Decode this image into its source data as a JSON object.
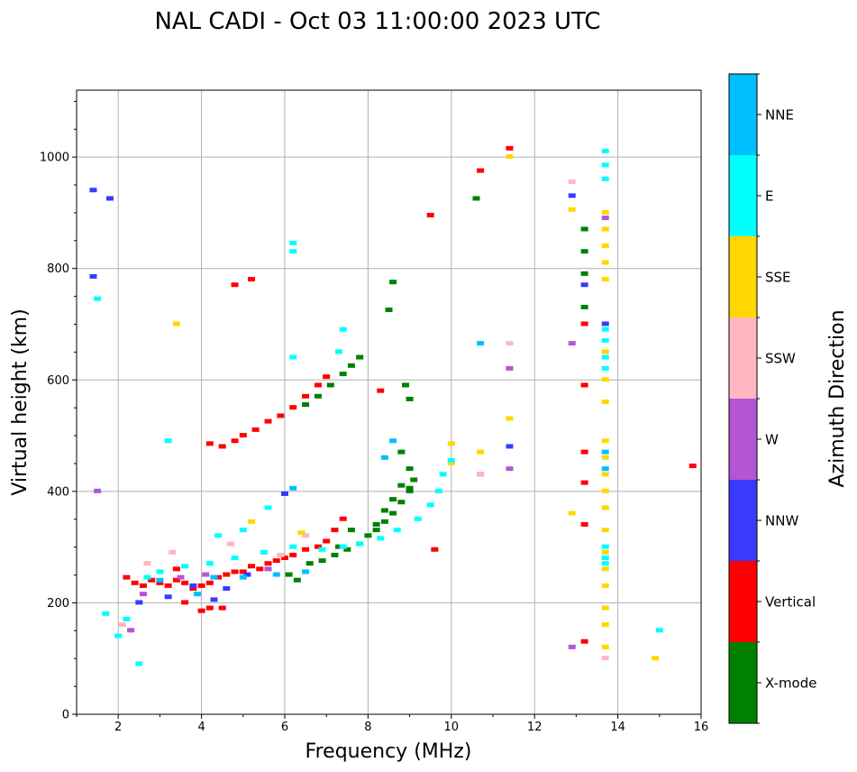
{
  "chart_data": {
    "type": "scatter",
    "title": "NAL CADI - Oct 03 11:00:00 2023 UTC",
    "xlabel": "Frequency (MHz)",
    "ylabel": "Virtual height (km)",
    "xlim": [
      1,
      16
    ],
    "ylim": [
      0,
      1120
    ],
    "xticks": [
      2,
      4,
      6,
      8,
      10,
      12,
      14,
      16
    ],
    "yticks": [
      0,
      200,
      400,
      600,
      800,
      1000
    ],
    "grid": true,
    "colorbar": {
      "label": "Azimuth Direction",
      "categories": [
        {
          "name": "X-mode",
          "color": "#008000"
        },
        {
          "name": "Vertical",
          "color": "#ff0000"
        },
        {
          "name": "NNW",
          "color": "#3a3aff"
        },
        {
          "name": "W",
          "color": "#b455d6"
        },
        {
          "name": "SSW",
          "color": "#ffb6c1"
        },
        {
          "name": "SSE",
          "color": "#ffd700"
        },
        {
          "name": "E",
          "color": "#00ffff"
        },
        {
          "name": "NNE",
          "color": "#00bfff"
        }
      ]
    },
    "series": [
      {
        "name": "Vertical",
        "points": [
          [
            2.2,
            245
          ],
          [
            2.4,
            235
          ],
          [
            2.6,
            230
          ],
          [
            2.8,
            240
          ],
          [
            3.0,
            235
          ],
          [
            3.2,
            230
          ],
          [
            3.4,
            240
          ],
          [
            3.6,
            235
          ],
          [
            3.8,
            225
          ],
          [
            4.0,
            230
          ],
          [
            4.2,
            235
          ],
          [
            4.4,
            245
          ],
          [
            4.6,
            250
          ],
          [
            4.8,
            255
          ],
          [
            5.0,
            255
          ],
          [
            5.2,
            265
          ],
          [
            5.4,
            260
          ],
          [
            5.6,
            270
          ],
          [
            5.8,
            275
          ],
          [
            6.0,
            280
          ],
          [
            6.2,
            285
          ],
          [
            6.5,
            295
          ],
          [
            6.8,
            300
          ],
          [
            7.0,
            310
          ],
          [
            7.2,
            330
          ],
          [
            7.4,
            350
          ],
          [
            4.0,
            185
          ],
          [
            4.2,
            190
          ],
          [
            4.5,
            190
          ],
          [
            3.6,
            200
          ],
          [
            3.4,
            260
          ],
          [
            4.2,
            485
          ],
          [
            4.5,
            480
          ],
          [
            4.8,
            490
          ],
          [
            5.0,
            500
          ],
          [
            5.3,
            510
          ],
          [
            5.6,
            525
          ],
          [
            5.9,
            535
          ],
          [
            6.2,
            550
          ],
          [
            6.5,
            570
          ],
          [
            6.8,
            590
          ],
          [
            7.0,
            605
          ],
          [
            5.2,
            780
          ],
          [
            4.8,
            770
          ],
          [
            13.2,
            700
          ],
          [
            13.2,
            590
          ],
          [
            13.2,
            470
          ],
          [
            13.2,
            415
          ],
          [
            13.2,
            340
          ],
          [
            13.2,
            130
          ],
          [
            15.8,
            445
          ],
          [
            11.4,
            1015
          ],
          [
            10.7,
            975
          ],
          [
            9.5,
            895
          ],
          [
            8.3,
            580
          ],
          [
            9.6,
            295
          ]
        ]
      },
      {
        "name": "X-mode",
        "points": [
          [
            6.6,
            270
          ],
          [
            6.9,
            275
          ],
          [
            7.2,
            285
          ],
          [
            7.5,
            295
          ],
          [
            7.8,
            305
          ],
          [
            8.0,
            320
          ],
          [
            8.2,
            330
          ],
          [
            8.4,
            345
          ],
          [
            8.6,
            360
          ],
          [
            8.8,
            380
          ],
          [
            9.0,
            400
          ],
          [
            9.1,
            420
          ],
          [
            9.0,
            440
          ],
          [
            8.8,
            470
          ],
          [
            8.6,
            385
          ],
          [
            8.4,
            365
          ],
          [
            8.2,
            340
          ],
          [
            7.6,
            330
          ],
          [
            7.3,
            300
          ],
          [
            6.3,
            240
          ],
          [
            6.1,
            250
          ],
          [
            6.5,
            555
          ],
          [
            6.8,
            570
          ],
          [
            7.1,
            590
          ],
          [
            7.4,
            610
          ],
          [
            7.6,
            625
          ],
          [
            7.8,
            640
          ],
          [
            8.6,
            775
          ],
          [
            8.5,
            725
          ],
          [
            8.9,
            590
          ],
          [
            9.0,
            565
          ],
          [
            13.2,
            870
          ],
          [
            13.2,
            830
          ],
          [
            13.2,
            790
          ],
          [
            13.2,
            730
          ],
          [
            10.6,
            925
          ],
          [
            9.0,
            405
          ],
          [
            8.8,
            410
          ]
        ]
      },
      {
        "name": "NNW",
        "points": [
          [
            2.5,
            200
          ],
          [
            3.2,
            210
          ],
          [
            3.8,
            230
          ],
          [
            4.3,
            205
          ],
          [
            4.6,
            225
          ],
          [
            5.1,
            250
          ],
          [
            6.0,
            395
          ],
          [
            12.9,
            930
          ],
          [
            13.2,
            770
          ],
          [
            13.7,
            700
          ],
          [
            1.4,
            940
          ],
          [
            1.4,
            785
          ],
          [
            1.8,
            925
          ],
          [
            11.4,
            480
          ]
        ]
      },
      {
        "name": "W",
        "points": [
          [
            2.3,
            150
          ],
          [
            2.6,
            215
          ],
          [
            3.5,
            245
          ],
          [
            4.1,
            250
          ],
          [
            5.6,
            260
          ],
          [
            12.9,
            665
          ],
          [
            12.9,
            120
          ],
          [
            13.7,
            890
          ],
          [
            11.4,
            620
          ],
          [
            10.7,
            430
          ],
          [
            11.4,
            440
          ],
          [
            1.5,
            400
          ]
        ]
      },
      {
        "name": "SSW",
        "points": [
          [
            2.1,
            160
          ],
          [
            2.7,
            270
          ],
          [
            3.3,
            290
          ],
          [
            4.7,
            305
          ],
          [
            5.9,
            285
          ],
          [
            6.5,
            320
          ],
          [
            13.7,
            100
          ],
          [
            11.4,
            665
          ],
          [
            10.7,
            430
          ],
          [
            12.9,
            955
          ]
        ]
      },
      {
        "name": "SSE",
        "points": [
          [
            3.4,
            700
          ],
          [
            5.2,
            345
          ],
          [
            6.4,
            325
          ],
          [
            10.0,
            485
          ],
          [
            10.0,
            450
          ],
          [
            10.7,
            470
          ],
          [
            11.4,
            530
          ],
          [
            11.4,
            1000
          ],
          [
            12.9,
            905
          ],
          [
            12.9,
            360
          ],
          [
            13.7,
            900
          ],
          [
            13.7,
            870
          ],
          [
            13.7,
            840
          ],
          [
            13.7,
            810
          ],
          [
            13.7,
            780
          ],
          [
            13.7,
            650
          ],
          [
            13.7,
            600
          ],
          [
            13.7,
            560
          ],
          [
            13.7,
            490
          ],
          [
            13.7,
            460
          ],
          [
            13.7,
            430
          ],
          [
            13.7,
            400
          ],
          [
            13.7,
            370
          ],
          [
            13.7,
            330
          ],
          [
            13.7,
            290
          ],
          [
            13.7,
            260
          ],
          [
            13.7,
            230
          ],
          [
            13.7,
            190
          ],
          [
            13.7,
            160
          ],
          [
            13.7,
            120
          ],
          [
            14.9,
            100
          ]
        ]
      },
      {
        "name": "E",
        "points": [
          [
            2.0,
            140
          ],
          [
            2.2,
            170
          ],
          [
            2.7,
            245
          ],
          [
            3.0,
            255
          ],
          [
            3.6,
            265
          ],
          [
            4.2,
            270
          ],
          [
            4.8,
            280
          ],
          [
            5.5,
            290
          ],
          [
            6.2,
            300
          ],
          [
            6.9,
            295
          ],
          [
            7.4,
            300
          ],
          [
            7.8,
            305
          ],
          [
            8.3,
            315
          ],
          [
            8.7,
            330
          ],
          [
            9.2,
            350
          ],
          [
            9.5,
            375
          ],
          [
            9.7,
            400
          ],
          [
            9.8,
            430
          ],
          [
            10.0,
            455
          ],
          [
            3.2,
            490
          ],
          [
            4.4,
            320
          ],
          [
            5.0,
            330
          ],
          [
            5.6,
            370
          ],
          [
            6.2,
            640
          ],
          [
            6.2,
            845
          ],
          [
            6.2,
            830
          ],
          [
            7.4,
            690
          ],
          [
            7.3,
            650
          ],
          [
            13.7,
            1010
          ],
          [
            13.7,
            985
          ],
          [
            13.7,
            960
          ],
          [
            13.7,
            690
          ],
          [
            13.7,
            670
          ],
          [
            13.7,
            640
          ],
          [
            13.7,
            620
          ],
          [
            13.7,
            300
          ],
          [
            13.7,
            280
          ],
          [
            13.7,
            270
          ],
          [
            15.0,
            150
          ],
          [
            1.5,
            745
          ],
          [
            1.7,
            180
          ],
          [
            2.5,
            90
          ]
        ]
      },
      {
        "name": "NNE",
        "points": [
          [
            3.0,
            240
          ],
          [
            3.9,
            215
          ],
          [
            4.3,
            245
          ],
          [
            5.0,
            245
          ],
          [
            5.8,
            250
          ],
          [
            6.5,
            255
          ],
          [
            6.2,
            405
          ],
          [
            8.4,
            460
          ],
          [
            8.6,
            490
          ],
          [
            10.7,
            665
          ],
          [
            13.7,
            470
          ],
          [
            13.7,
            440
          ]
        ]
      }
    ]
  }
}
